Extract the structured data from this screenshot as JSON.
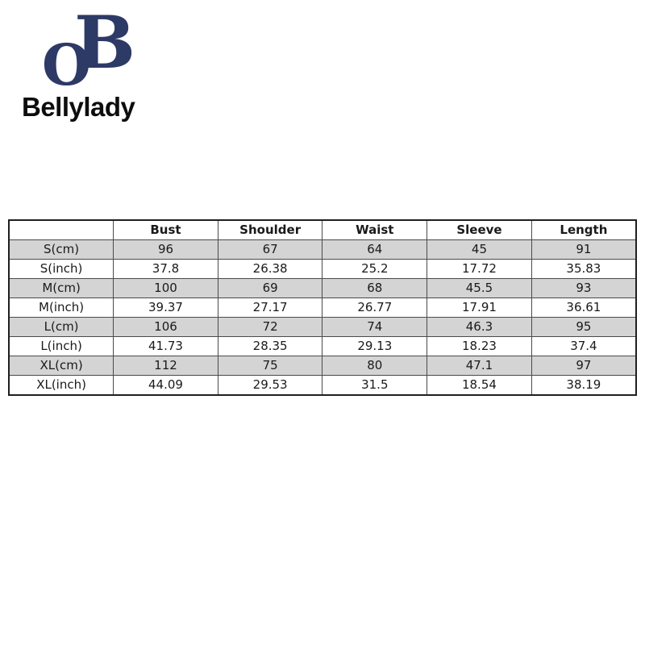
{
  "brand": {
    "monogram_b": "B",
    "monogram_o": "O",
    "name": "Bellylady"
  },
  "colors": {
    "brand_navy": "#2d3a66",
    "row_shade": "#d4d4d4",
    "table_border": "#4a4a4a",
    "text": "#1a1a1a"
  },
  "size_chart": {
    "headers": [
      "",
      "Bust",
      "Shoulder",
      "Waist",
      "Sleeve",
      "Length"
    ],
    "rows": [
      {
        "label": "S(cm)",
        "shaded": true,
        "values": [
          "96",
          "67",
          "64",
          "45",
          "91"
        ]
      },
      {
        "label": "S(inch)",
        "shaded": false,
        "values": [
          "37.8",
          "26.38",
          "25.2",
          "17.72",
          "35.83"
        ]
      },
      {
        "label": "M(cm)",
        "shaded": true,
        "values": [
          "100",
          "69",
          "68",
          "45.5",
          "93"
        ]
      },
      {
        "label": "M(inch)",
        "shaded": false,
        "values": [
          "39.37",
          "27.17",
          "26.77",
          "17.91",
          "36.61"
        ]
      },
      {
        "label": "L(cm)",
        "shaded": true,
        "values": [
          "106",
          "72",
          "74",
          "46.3",
          "95"
        ]
      },
      {
        "label": "L(inch)",
        "shaded": false,
        "values": [
          "41.73",
          "28.35",
          "29.13",
          "18.23",
          "37.4"
        ]
      },
      {
        "label": "XL(cm)",
        "shaded": true,
        "values": [
          "112",
          "75",
          "80",
          "47.1",
          "97"
        ]
      },
      {
        "label": "XL(inch)",
        "shaded": false,
        "values": [
          "44.09",
          "29.53",
          "31.5",
          "18.54",
          "38.19"
        ]
      }
    ]
  }
}
